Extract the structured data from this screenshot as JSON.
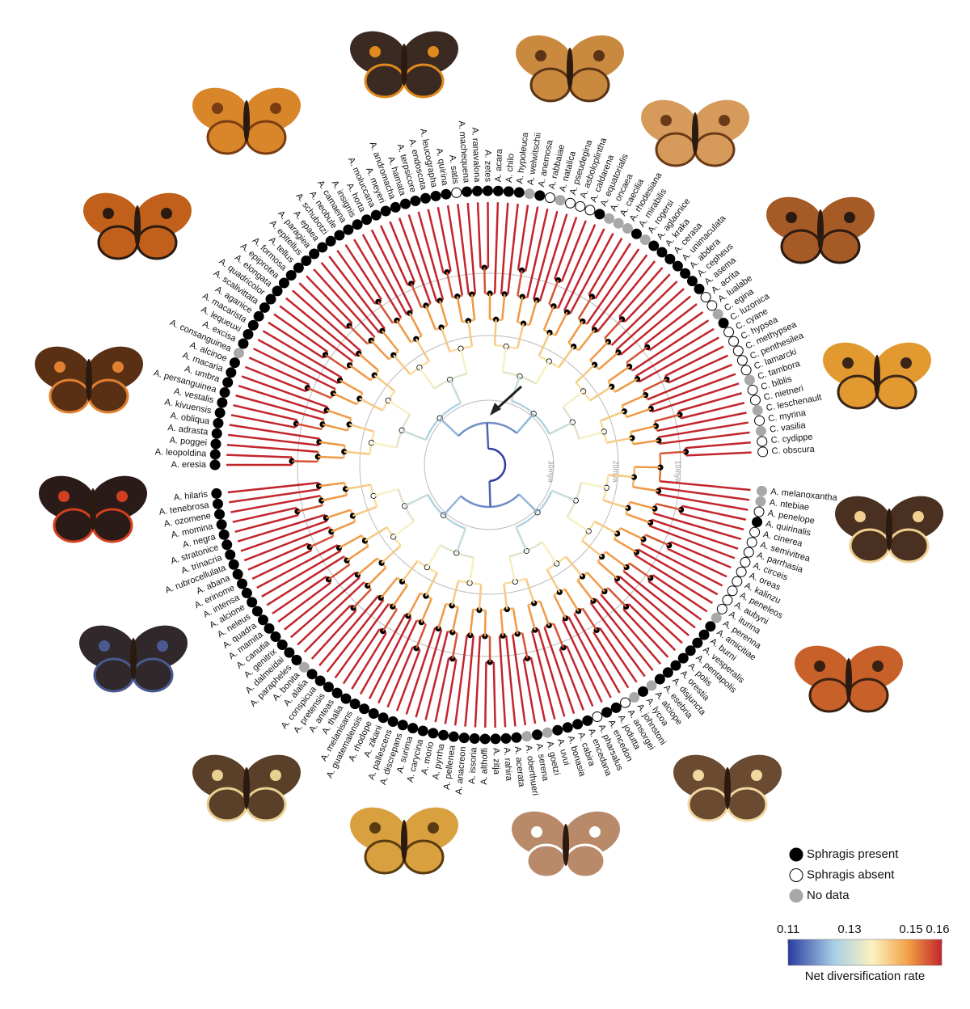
{
  "taxa": [
    {
      "name": "A. eresia",
      "sphragis": "present"
    },
    {
      "name": "A. leopoldina",
      "sphragis": "present"
    },
    {
      "name": "A. poggei",
      "sphragis": "present"
    },
    {
      "name": "A. adrasta",
      "sphragis": "present"
    },
    {
      "name": "A. obliqua",
      "sphragis": "present"
    },
    {
      "name": "A. kivuensis",
      "sphragis": "present"
    },
    {
      "name": "A. vestalis",
      "sphragis": "present"
    },
    {
      "name": "A. persanguinea",
      "sphragis": "present"
    },
    {
      "name": "A. umbra",
      "sphragis": "present"
    },
    {
      "name": "A. macaria",
      "sphragis": "present"
    },
    {
      "name": "A. alcinoe",
      "sphragis": "present"
    },
    {
      "name": "A. consanguinea",
      "sphragis": "no_data"
    },
    {
      "name": "A. excisa",
      "sphragis": "present"
    },
    {
      "name": "A. lequeuxi",
      "sphragis": "present"
    },
    {
      "name": "A. macarista",
      "sphragis": "present"
    },
    {
      "name": "A. aganice",
      "sphragis": "present"
    },
    {
      "name": "A. scalivittata",
      "sphragis": "present"
    },
    {
      "name": "A. quadricolor",
      "sphragis": "present"
    },
    {
      "name": "A. elongata",
      "sphragis": "present"
    },
    {
      "name": "A. epiprotea",
      "sphragis": "present"
    },
    {
      "name": "A. formosa",
      "sphragis": "present"
    },
    {
      "name": "A. tellus",
      "sphragis": "present"
    },
    {
      "name": "A. epitellus",
      "sphragis": "present"
    },
    {
      "name": "A. paragiea",
      "sphragis": "present"
    },
    {
      "name": "A. epaea",
      "sphragis": "present"
    },
    {
      "name": "A. schubotzi",
      "sphragis": "present"
    },
    {
      "name": "A. neobule",
      "sphragis": "present"
    },
    {
      "name": "A. camaena",
      "sphragis": "present"
    },
    {
      "name": "A. insignis",
      "sphragis": "present"
    },
    {
      "name": "A. horta",
      "sphragis": "present"
    },
    {
      "name": "A. moluccana",
      "sphragis": "present"
    },
    {
      "name": "A. meyeri",
      "sphragis": "present"
    },
    {
      "name": "A. andromacha",
      "sphragis": "present"
    },
    {
      "name": "A. hamata",
      "sphragis": "present"
    },
    {
      "name": "A. terpsicore",
      "sphragis": "present"
    },
    {
      "name": "A. endoscota",
      "sphragis": "present"
    },
    {
      "name": "A. leucographa",
      "sphragis": "present"
    },
    {
      "name": "A. quirina",
      "sphragis": "present"
    },
    {
      "name": "A. satis",
      "sphragis": "absent"
    },
    {
      "name": "A. machequena",
      "sphragis": "present"
    },
    {
      "name": "A. ranavalona",
      "sphragis": "present"
    },
    {
      "name": "A. zetes",
      "sphragis": "present"
    },
    {
      "name": "A. acara",
      "sphragis": "present"
    },
    {
      "name": "A. chilo",
      "sphragis": "present"
    },
    {
      "name": "A. hypoleuca",
      "sphragis": "present"
    },
    {
      "name": "A. welwitschii",
      "sphragis": "no_data"
    },
    {
      "name": "A. anemosa",
      "sphragis": "present"
    },
    {
      "name": "A. rabbaiae",
      "sphragis": "absent"
    },
    {
      "name": "A. natalica",
      "sphragis": "no_data"
    },
    {
      "name": "A. pseudegina",
      "sphragis": "absent"
    },
    {
      "name": "A. asboloplintha",
      "sphragis": "absent"
    },
    {
      "name": "A. caldarena",
      "sphragis": "absent"
    },
    {
      "name": "A. equatorialis",
      "sphragis": "present"
    },
    {
      "name": "A. oncaea",
      "sphragis": "no_data"
    },
    {
      "name": "A. caecilia",
      "sphragis": "no_data"
    },
    {
      "name": "A. rhodesiana",
      "sphragis": "no_data"
    },
    {
      "name": "A. mirabilis",
      "sphragis": "present"
    },
    {
      "name": "A. rogersi",
      "sphragis": "no_data"
    },
    {
      "name": "A. aglaonice",
      "sphragis": "present"
    },
    {
      "name": "A. kraka",
      "sphragis": "present"
    },
    {
      "name": "A. cerasa",
      "sphragis": "present"
    },
    {
      "name": "A. unimaculata",
      "sphragis": "present"
    },
    {
      "name": "A. abdera",
      "sphragis": "present"
    },
    {
      "name": "A. cepheus",
      "sphragis": "present"
    },
    {
      "name": "A. asema",
      "sphragis": "present"
    },
    {
      "name": "A. acrita",
      "sphragis": "absent"
    },
    {
      "name": "A. lualabe",
      "sphragis": "absent"
    },
    {
      "name": "C. egina",
      "sphragis": "no_data"
    },
    {
      "name": "C. luzonica",
      "sphragis": "present"
    },
    {
      "name": "C. cyane",
      "sphragis": "absent"
    },
    {
      "name": "C. hypsea",
      "sphragis": "absent"
    },
    {
      "name": "C. methypsea",
      "sphragis": "absent"
    },
    {
      "name": "C. penthesilea",
      "sphragis": "absent"
    },
    {
      "name": "C. lamarcki",
      "sphragis": "absent"
    },
    {
      "name": "C. tambora",
      "sphragis": "no_data"
    },
    {
      "name": "C. biblis",
      "sphragis": "absent"
    },
    {
      "name": "C. nietneri",
      "sphragis": "absent"
    },
    {
      "name": "C. leschenault",
      "sphragis": "no_data"
    },
    {
      "name": "C. myrina",
      "sphragis": "absent"
    },
    {
      "name": "C. vasilia",
      "sphragis": "no_data"
    },
    {
      "name": "C. cydippe",
      "sphragis": "absent"
    },
    {
      "name": "C. obscura",
      "sphragis": "absent"
    },
    {
      "name": "A. melanoxantha",
      "sphragis": "no_data"
    },
    {
      "name": "A. ntebiae",
      "sphragis": "no_data"
    },
    {
      "name": "A. penelope",
      "sphragis": "absent"
    },
    {
      "name": "A. quirinalis",
      "sphragis": "present"
    },
    {
      "name": "A. cinerea",
      "sphragis": "absent"
    },
    {
      "name": "A. semivitrea",
      "sphragis": "absent"
    },
    {
      "name": "A. parrhasia",
      "sphragis": "absent"
    },
    {
      "name": "A. circeis",
      "sphragis": "absent"
    },
    {
      "name": "A. oreas",
      "sphragis": "absent"
    },
    {
      "name": "A. kalinzu",
      "sphragis": "absent"
    },
    {
      "name": "A. peneleos",
      "sphragis": "absent"
    },
    {
      "name": "A. aubyni",
      "sphragis": "absent"
    },
    {
      "name": "A. iturina",
      "sphragis": "absent"
    },
    {
      "name": "A. perenna",
      "sphragis": "no_data"
    },
    {
      "name": "A. amicitiae",
      "sphragis": "present"
    },
    {
      "name": "A. burni",
      "sphragis": "present"
    },
    {
      "name": "A. vesperalis",
      "sphragis": "present"
    },
    {
      "name": "A. pentapolis",
      "sphragis": "present"
    },
    {
      "name": "A. polis",
      "sphragis": "present"
    },
    {
      "name": "A. orestia",
      "sphragis": "present"
    },
    {
      "name": "A. disjuncta",
      "sphragis": "present"
    },
    {
      "name": "A. esebria",
      "sphragis": "present"
    },
    {
      "name": "A. alciope",
      "sphragis": "no_data"
    },
    {
      "name": "A. lycoa",
      "sphragis": "present"
    },
    {
      "name": "A. johnstoni",
      "sphragis": "no_data"
    },
    {
      "name": "A. ansorgei",
      "sphragis": "absent"
    },
    {
      "name": "A. jodutta",
      "sphragis": "present"
    },
    {
      "name": "A. encedon",
      "sphragis": "present"
    },
    {
      "name": "A. pharsalus",
      "sphragis": "absent"
    },
    {
      "name": "A. encedana",
      "sphragis": "present"
    },
    {
      "name": "A. cabira",
      "sphragis": "present"
    },
    {
      "name": "A. bonasia",
      "sphragis": "present"
    },
    {
      "name": "A. uvui",
      "sphragis": "present"
    },
    {
      "name": "A. goetzi",
      "sphragis": "no_data"
    },
    {
      "name": "A. serena",
      "sphragis": "present"
    },
    {
      "name": "A. oberthueri",
      "sphragis": "no_data"
    },
    {
      "name": "A. acerata",
      "sphragis": "present"
    },
    {
      "name": "A. rahira",
      "sphragis": "present"
    },
    {
      "name": "A. zitja",
      "sphragis": "present"
    },
    {
      "name": "A. althoffi",
      "sphragis": "present"
    },
    {
      "name": "A. issoria",
      "sphragis": "present"
    },
    {
      "name": "A. anacreon",
      "sphragis": "present"
    },
    {
      "name": "A. pellenea",
      "sphragis": "present"
    },
    {
      "name": "A. pyrrha",
      "sphragis": "present"
    },
    {
      "name": "A. morio",
      "sphragis": "present"
    },
    {
      "name": "A. carycina",
      "sphragis": "present"
    },
    {
      "name": "A. surima",
      "sphragis": "present"
    },
    {
      "name": "A. discrepans",
      "sphragis": "present"
    },
    {
      "name": "A. pallescens",
      "sphragis": "present"
    },
    {
      "name": "A. zikani",
      "sphragis": "present"
    },
    {
      "name": "A. rhodope",
      "sphragis": "present"
    },
    {
      "name": "A. guatemalensis",
      "sphragis": "present"
    },
    {
      "name": "A. melanisans",
      "sphragis": "present"
    },
    {
      "name": "A. thalia",
      "sphragis": "present"
    },
    {
      "name": "A. anteas",
      "sphragis": "present"
    },
    {
      "name": "A. pretensis",
      "sphragis": "present"
    },
    {
      "name": "A. conspicua",
      "sphragis": "present"
    },
    {
      "name": "A. alalia",
      "sphragis": "present"
    },
    {
      "name": "A. bonita",
      "sphragis": "no_data"
    },
    {
      "name": "A. parapheles",
      "sphragis": "present"
    },
    {
      "name": "A. dalmeidai",
      "sphragis": "present"
    },
    {
      "name": "A. genitrix",
      "sphragis": "present"
    },
    {
      "name": "A. canutia",
      "sphragis": "present"
    },
    {
      "name": "A. mamita",
      "sphragis": "present"
    },
    {
      "name": "A. quadra",
      "sphragis": "present"
    },
    {
      "name": "A. neleus",
      "sphragis": "present"
    },
    {
      "name": "A. alcione",
      "sphragis": "present"
    },
    {
      "name": "A. intensa",
      "sphragis": "present"
    },
    {
      "name": "A. erinome",
      "sphragis": "present"
    },
    {
      "name": "A. abana",
      "sphragis": "present"
    },
    {
      "name": "A. rubrocellulata",
      "sphragis": "present"
    },
    {
      "name": "A. trinacria",
      "sphragis": "present"
    },
    {
      "name": "A. stratonice",
      "sphragis": "present"
    },
    {
      "name": "A. negra",
      "sphragis": "present"
    },
    {
      "name": "A. momina",
      "sphragis": "present"
    },
    {
      "name": "A. ozomene",
      "sphragis": "present"
    },
    {
      "name": "A. tenebrosa",
      "sphragis": "present"
    },
    {
      "name": "A. hilaris",
      "sphragis": "present"
    }
  ],
  "split_after": "C. obscura",
  "scale_labels": [
    "10mya",
    "20mya",
    "30mya"
  ],
  "legend": [
    {
      "label": "Sphragis present",
      "sphragis": "present"
    },
    {
      "label": "Sphragis absent",
      "sphragis": "absent"
    },
    {
      "label": "No data",
      "sphragis": "no_data"
    }
  ],
  "colorbar": {
    "lim": [
      0.11,
      0.16
    ],
    "ticks": [
      0.11,
      0.13,
      0.15,
      0.16
    ],
    "label": "Net diversification rate"
  }
}
